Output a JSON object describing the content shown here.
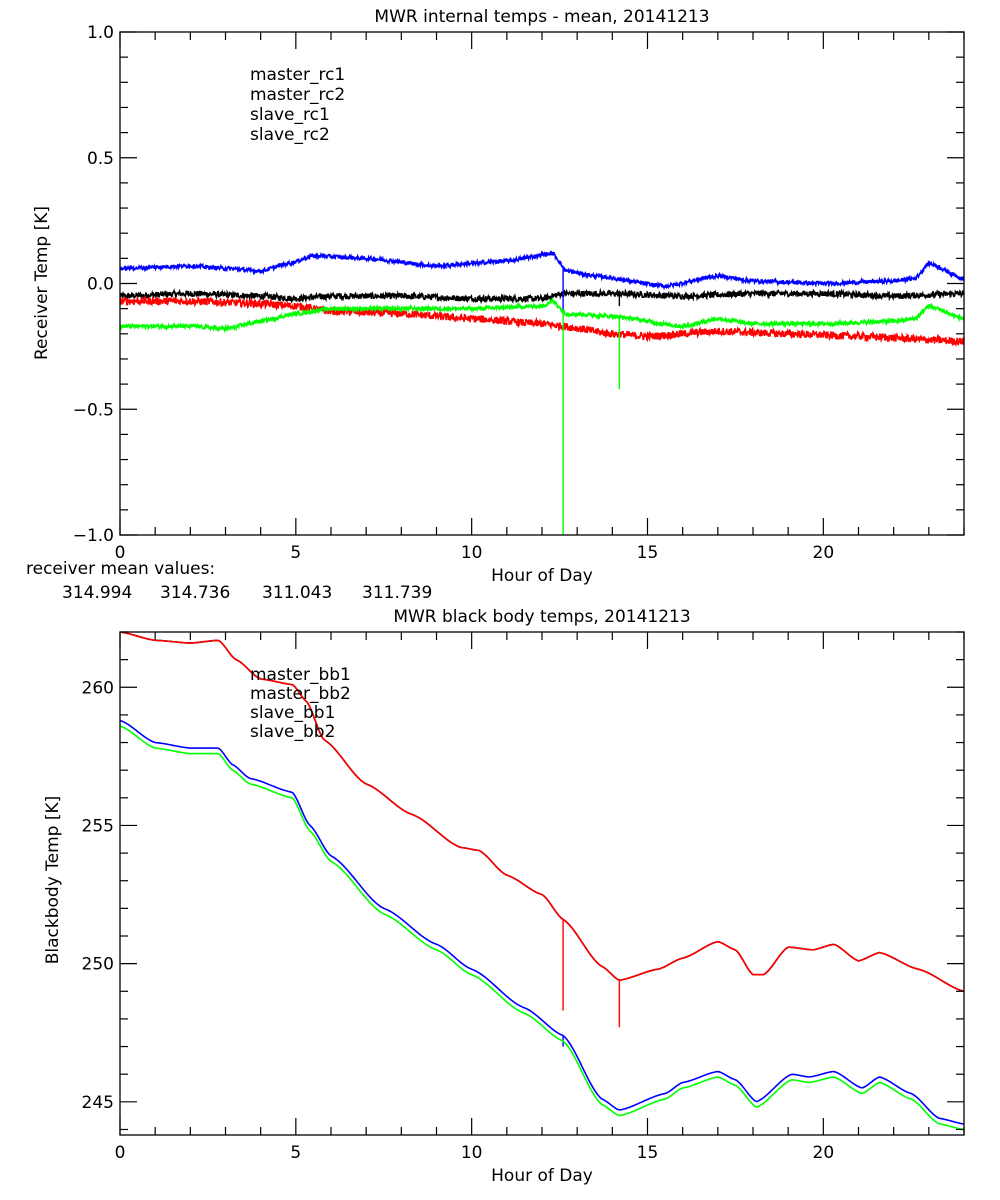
{
  "chart_data": [
    {
      "type": "line",
      "title": "MWR internal temps - mean, 20141213",
      "xlabel": "Hour of Day",
      "ylabel": "Receiver Temp [K]",
      "xlim": [
        0,
        24
      ],
      "ylim": [
        -1.0,
        1.0
      ],
      "xticks": [
        0,
        5,
        10,
        15,
        20
      ],
      "xtick_labels": [
        "0",
        "5",
        "10",
        "15",
        "20"
      ],
      "yticks": [
        1.0,
        0.5,
        0.0,
        -0.5,
        -1.0
      ],
      "ytick_labels": [
        "1.0",
        "0.5",
        "0.0",
        "-0.5",
        "-1.0"
      ],
      "grid": false,
      "legend_position": "top-left (inside)",
      "noisy": true,
      "series": [
        {
          "name": "master_rc1",
          "color": "#000000",
          "noise": 0.012,
          "x": [
            0,
            2,
            4,
            5,
            6,
            8,
            10,
            12,
            12.6,
            14,
            16,
            18,
            20,
            22,
            24
          ],
          "y": [
            -0.05,
            -0.04,
            -0.05,
            -0.06,
            -0.05,
            -0.05,
            -0.06,
            -0.06,
            -0.04,
            -0.04,
            -0.05,
            -0.04,
            -0.04,
            -0.05,
            -0.04
          ],
          "spikes": [
            {
              "x": 14.2,
              "y": -0.09
            }
          ]
        },
        {
          "name": "master_rc2",
          "color": "#ff0000",
          "noise": 0.015,
          "x": [
            0,
            2,
            4,
            5,
            6,
            8,
            10,
            12,
            12.6,
            14,
            15,
            17,
            19,
            21,
            24
          ],
          "y": [
            -0.07,
            -0.07,
            -0.08,
            -0.09,
            -0.11,
            -0.12,
            -0.14,
            -0.16,
            -0.17,
            -0.2,
            -0.21,
            -0.19,
            -0.2,
            -0.21,
            -0.23
          ],
          "spikes": []
        },
        {
          "name": "slave_rc1",
          "color": "#0000ff",
          "noise": 0.008,
          "x": [
            0,
            2,
            3,
            4,
            4.8,
            5.5,
            7,
            9,
            10,
            11,
            12.3,
            12.7,
            13.5,
            15.5,
            17,
            18,
            20,
            22,
            22.6,
            23,
            24
          ],
          "y": [
            0.06,
            0.07,
            0.06,
            0.05,
            0.08,
            0.11,
            0.1,
            0.07,
            0.08,
            0.09,
            0.12,
            0.05,
            0.03,
            -0.01,
            0.03,
            0.01,
            0.0,
            0.01,
            0.02,
            0.08,
            0.02
          ],
          "spikes": [
            {
              "x": 12.6,
              "y": -0.12
            }
          ]
        },
        {
          "name": "slave_rc2",
          "color": "#00ff00",
          "noise": 0.008,
          "x": [
            0,
            2,
            3,
            4,
            5,
            6,
            8,
            10,
            12,
            12.3,
            12.7,
            14,
            16,
            17,
            18,
            20,
            22,
            22.6,
            23,
            24
          ],
          "y": [
            -0.17,
            -0.17,
            -0.18,
            -0.15,
            -0.12,
            -0.1,
            -0.1,
            -0.1,
            -0.09,
            -0.07,
            -0.12,
            -0.13,
            -0.17,
            -0.14,
            -0.16,
            -0.16,
            -0.15,
            -0.14,
            -0.09,
            -0.14
          ],
          "spikes": [
            {
              "x": 12.6,
              "y": -1.0
            },
            {
              "x": 14.2,
              "y": -0.42
            }
          ]
        }
      ],
      "annotation": {
        "label": "receiver mean values:",
        "values": [
          {
            "text": "314.994",
            "color": "#000000"
          },
          {
            "text": "314.736",
            "color": "#ff0000"
          },
          {
            "text": "311.043",
            "color": "#0000ff"
          },
          {
            "text": "311.739",
            "color": "#00ff00"
          }
        ]
      }
    },
    {
      "type": "line",
      "title": "MWR black body temps, 20141213",
      "xlabel": "Hour of Day",
      "ylabel": "Blackbody Temp [K]",
      "xlim": [
        0,
        24
      ],
      "ylim": [
        243.8,
        262
      ],
      "xticks": [
        0,
        5,
        10,
        15,
        20
      ],
      "xtick_labels": [
        "0",
        "5",
        "10",
        "15",
        "20"
      ],
      "yticks": [
        260,
        255,
        250,
        245
      ],
      "ytick_labels": [
        "260",
        "255",
        "250",
        "245"
      ],
      "grid": false,
      "legend_position": "top-left (inside)",
      "noisy": false,
      "series": [
        {
          "name": "master_bb1",
          "color": "#000000",
          "offset": 0.0,
          "x": [
            0,
            1,
            2,
            2.8,
            3.3,
            4,
            4.9,
            5.3,
            5.8,
            7,
            8.3,
            9.7,
            10.2,
            11,
            12,
            12.6,
            13.7,
            14.2,
            15.3,
            16,
            17,
            17.5,
            18,
            18.3,
            19,
            19.7,
            20.3,
            21,
            21.6,
            22.7,
            24
          ],
          "y": [
            262.0,
            261.7,
            261.6,
            261.7,
            261.0,
            260.3,
            260.1,
            259.5,
            258.1,
            256.5,
            255.4,
            254.2,
            254.1,
            253.2,
            252.5,
            251.6,
            249.9,
            249.4,
            249.8,
            250.2,
            250.8,
            250.5,
            249.6,
            249.6,
            250.6,
            250.5,
            250.7,
            250.1,
            250.4,
            249.8,
            249.0
          ],
          "spikes": []
        },
        {
          "name": "master_bb2",
          "color": "#ff0000",
          "offset": 0.0,
          "x": [
            0,
            1,
            2,
            2.8,
            3.3,
            4,
            4.9,
            5.3,
            5.8,
            7,
            8.3,
            9.7,
            10.2,
            11,
            12,
            12.6,
            13.7,
            14.2,
            15.3,
            16,
            17,
            17.5,
            18,
            18.3,
            19,
            19.7,
            20.3,
            21,
            21.6,
            22.7,
            24
          ],
          "y": [
            262.0,
            261.7,
            261.6,
            261.7,
            261.0,
            260.3,
            260.1,
            259.5,
            258.1,
            256.5,
            255.4,
            254.2,
            254.1,
            253.2,
            252.5,
            251.6,
            249.9,
            249.4,
            249.8,
            250.2,
            250.8,
            250.5,
            249.6,
            249.6,
            250.6,
            250.5,
            250.7,
            250.1,
            250.4,
            249.8,
            249.0
          ],
          "spikes": [
            {
              "x": 12.6,
              "y": 248.3
            },
            {
              "x": 14.2,
              "y": 247.7
            }
          ]
        },
        {
          "name": "slave_bb1",
          "color": "#0000ff",
          "offset": 0.0,
          "x": [
            0,
            1,
            2,
            2.8,
            3.2,
            3.7,
            4.9,
            5.4,
            6,
            7.5,
            9,
            10,
            11.5,
            12.6,
            13.7,
            14.2,
            15.5,
            16,
            17,
            17.5,
            18.1,
            19.1,
            19.6,
            20.3,
            21.1,
            21.6,
            22.5,
            23.3,
            24
          ],
          "y": [
            258.8,
            258.0,
            257.8,
            257.8,
            257.2,
            256.7,
            256.2,
            255.0,
            253.9,
            252.0,
            250.7,
            249.8,
            248.4,
            247.4,
            245.1,
            244.7,
            245.3,
            245.7,
            246.1,
            245.8,
            245.0,
            246.0,
            245.9,
            246.1,
            245.5,
            245.9,
            245.3,
            244.4,
            244.2
          ],
          "spikes": [
            {
              "x": 12.6,
              "y": 247.0
            }
          ]
        },
        {
          "name": "slave_bb2",
          "color": "#00ff00",
          "offset": 0.0,
          "x": [
            0,
            1,
            2,
            2.8,
            3.2,
            3.7,
            4.9,
            5.4,
            6,
            7.5,
            9,
            10,
            11.5,
            12.6,
            13.7,
            14.2,
            15.5,
            16,
            17,
            17.5,
            18.1,
            19.1,
            19.6,
            20.3,
            21.1,
            21.6,
            22.5,
            23.3,
            24
          ],
          "y": [
            258.6,
            257.8,
            257.6,
            257.6,
            257.0,
            256.5,
            256.0,
            254.8,
            253.7,
            251.8,
            250.5,
            249.6,
            248.2,
            247.2,
            244.9,
            244.5,
            245.1,
            245.5,
            245.9,
            245.6,
            244.8,
            245.8,
            245.7,
            245.9,
            245.3,
            245.7,
            245.1,
            244.2,
            244.0
          ],
          "spikes": []
        }
      ]
    }
  ]
}
